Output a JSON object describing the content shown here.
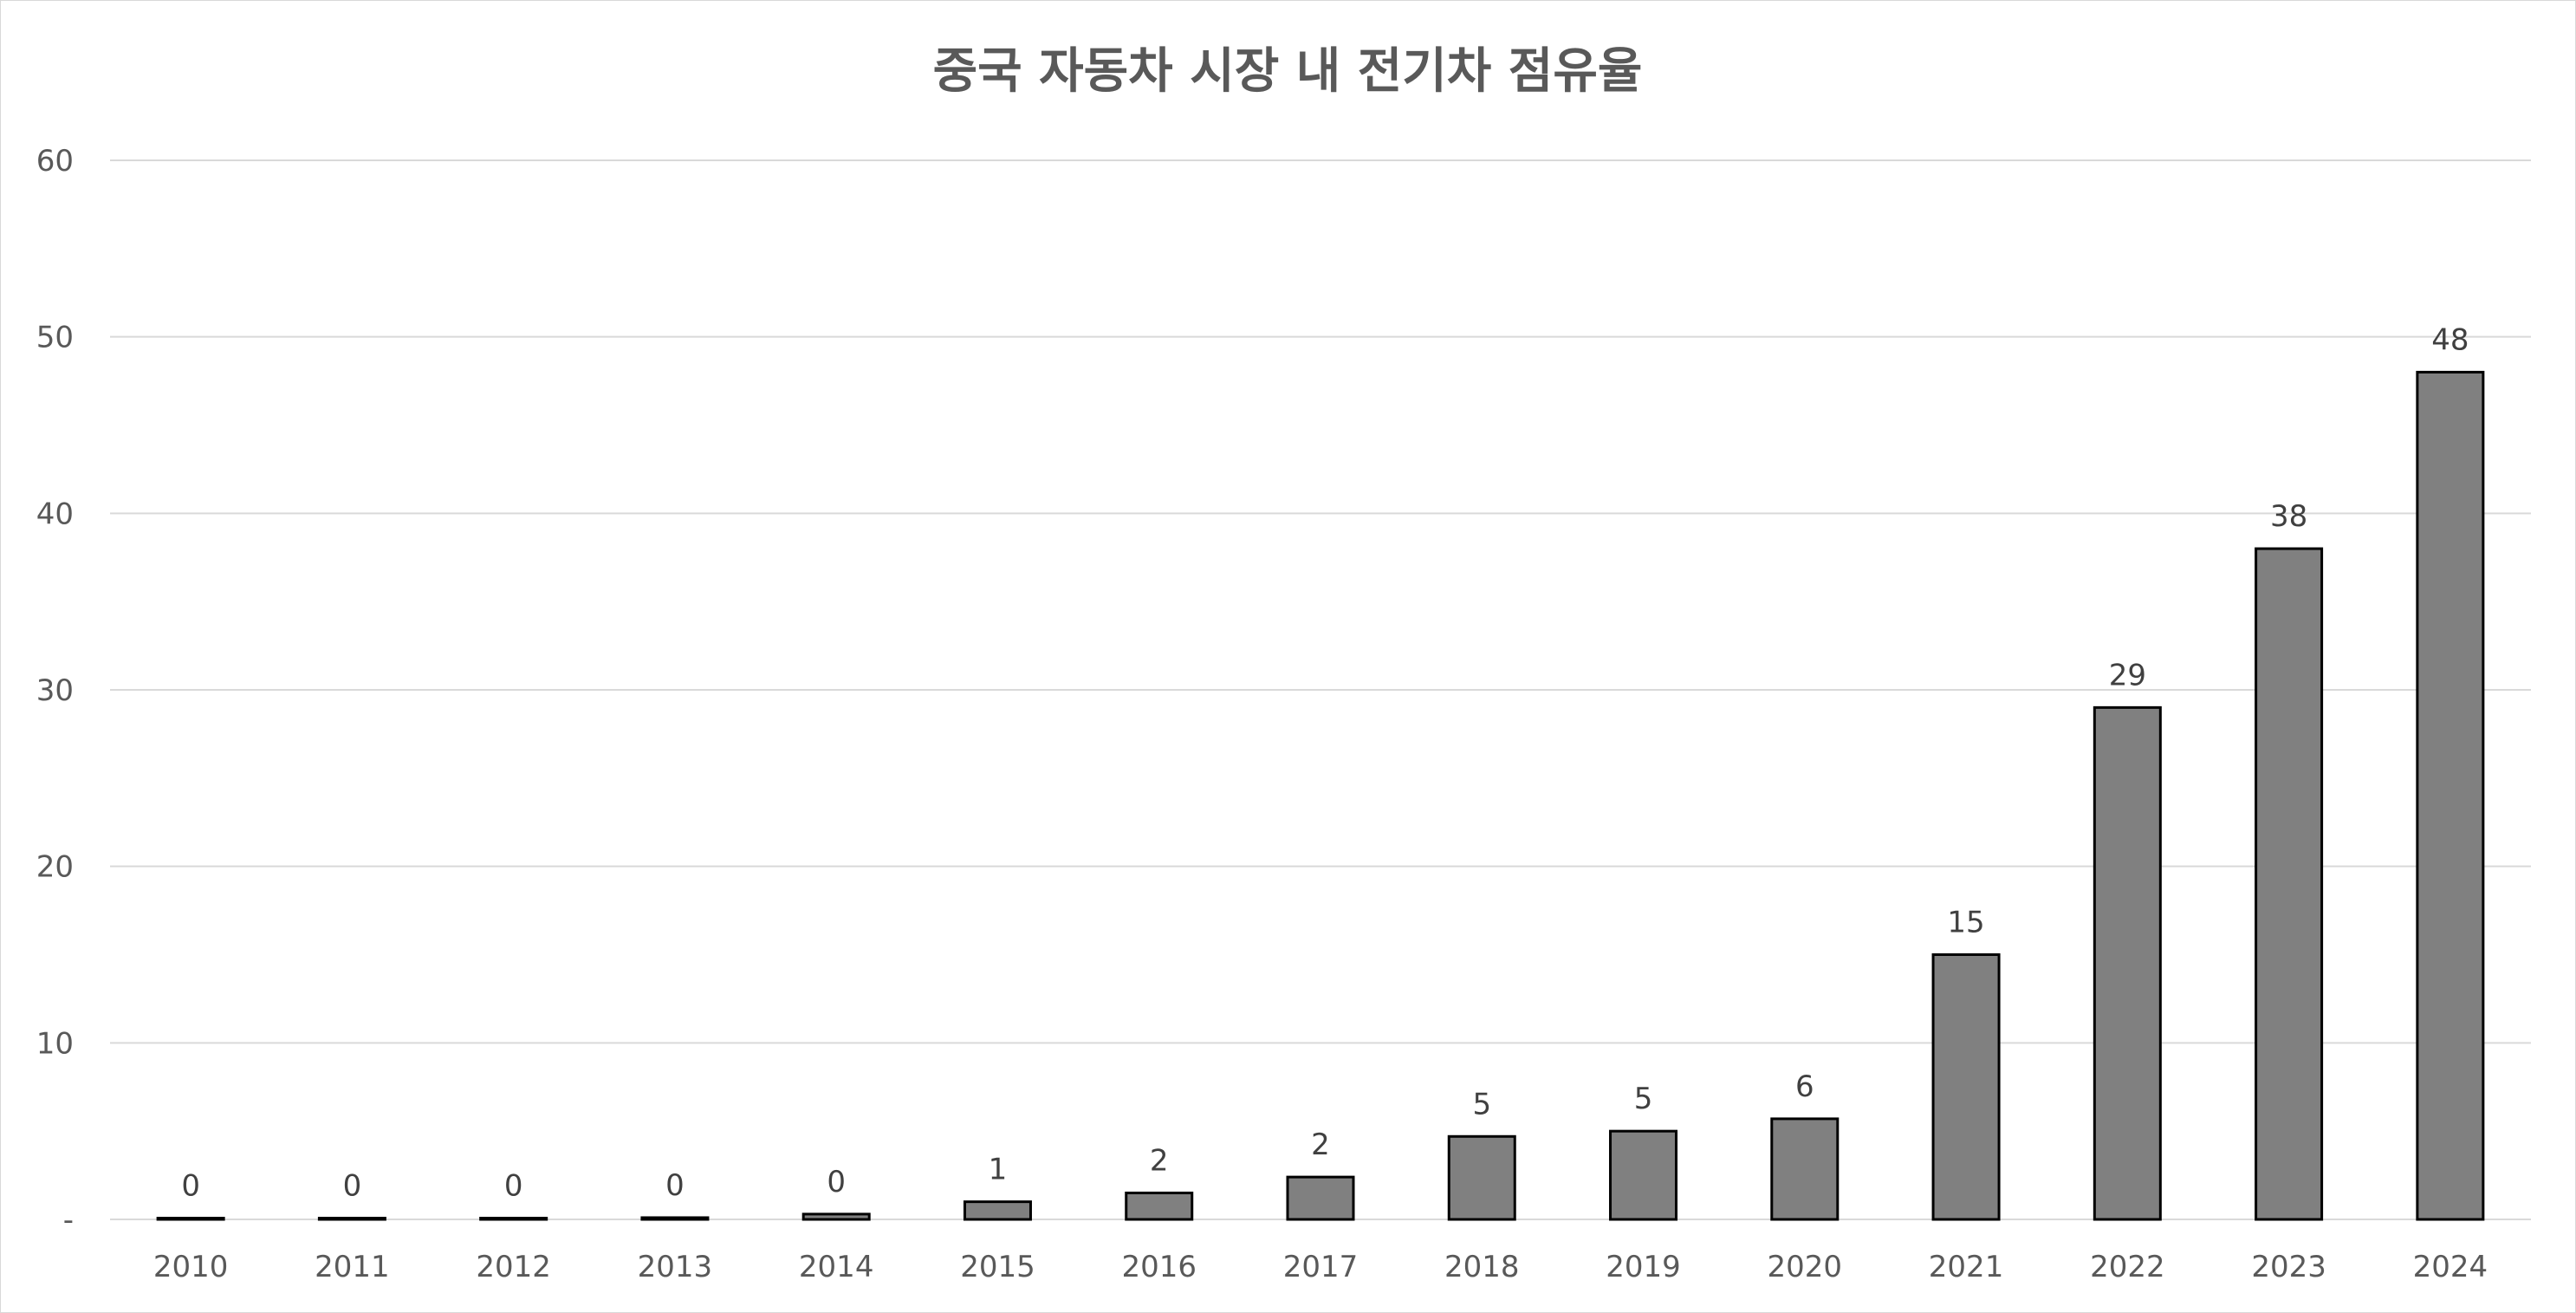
{
  "chart_data": {
    "type": "bar",
    "title": "중국 자동차 시장 내 전기차 점유율",
    "xlabel": "",
    "ylabel": "",
    "ylim": [
      0,
      60
    ],
    "yticks": [
      {
        "value": 0,
        "label": "-"
      },
      {
        "value": 10,
        "label": "10"
      },
      {
        "value": 20,
        "label": "20"
      },
      {
        "value": 30,
        "label": "30"
      },
      {
        "value": 40,
        "label": "40"
      },
      {
        "value": 50,
        "label": "50"
      },
      {
        "value": 60,
        "label": "60"
      }
    ],
    "grid": true,
    "legend": "none",
    "bar_fill": "#808080",
    "bar_stroke": "#000000",
    "categories": [
      "2010",
      "2011",
      "2012",
      "2013",
      "2014",
      "2015",
      "2016",
      "2017",
      "2018",
      "2019",
      "2020",
      "2021",
      "2022",
      "2023",
      "2024"
    ],
    "values": [
      0.01,
      0.01,
      0.05,
      0.1,
      0.3,
      1,
      1.5,
      2.4,
      4.7,
      5,
      5.7,
      15,
      29,
      38,
      48
    ],
    "data_labels": [
      "0",
      "0",
      "0",
      "0",
      "0",
      "1",
      "2",
      "2",
      "5",
      "5",
      "6",
      "15",
      "29",
      "38",
      "48"
    ]
  }
}
